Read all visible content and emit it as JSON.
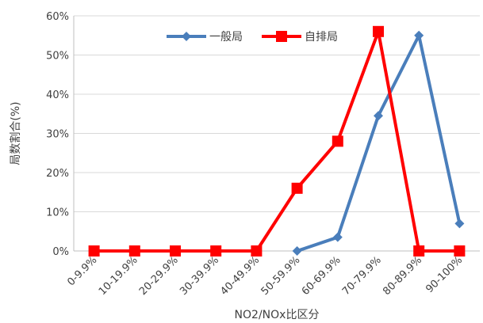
{
  "chart_data": {
    "type": "line",
    "xlabel": "NO2/NOx比区分",
    "ylabel": "局数割合(%)",
    "categories": [
      "0-9.9%",
      "10-19.9%",
      "20-29.9%",
      "30-39.9%",
      "40-49.9%",
      "50-59.9%",
      "60-69.9%",
      "70-79.9%",
      "80-89.9%",
      "90-100%"
    ],
    "ylim": [
      0,
      60
    ],
    "yticks": [
      "0%",
      "10%",
      "20%",
      "30%",
      "40%",
      "50%",
      "60%"
    ],
    "grid": true,
    "legend": "top-center",
    "series": [
      {
        "name": "一般局",
        "color": "#4a7ebb",
        "marker": "diamond",
        "values": [
          null,
          null,
          null,
          null,
          null,
          0,
          3.5,
          34.5,
          55,
          7
        ]
      },
      {
        "name": "自排局",
        "color": "#ff0000",
        "marker": "square",
        "values": [
          0,
          0,
          0,
          0,
          0,
          16,
          28,
          56,
          0,
          0
        ]
      }
    ]
  }
}
